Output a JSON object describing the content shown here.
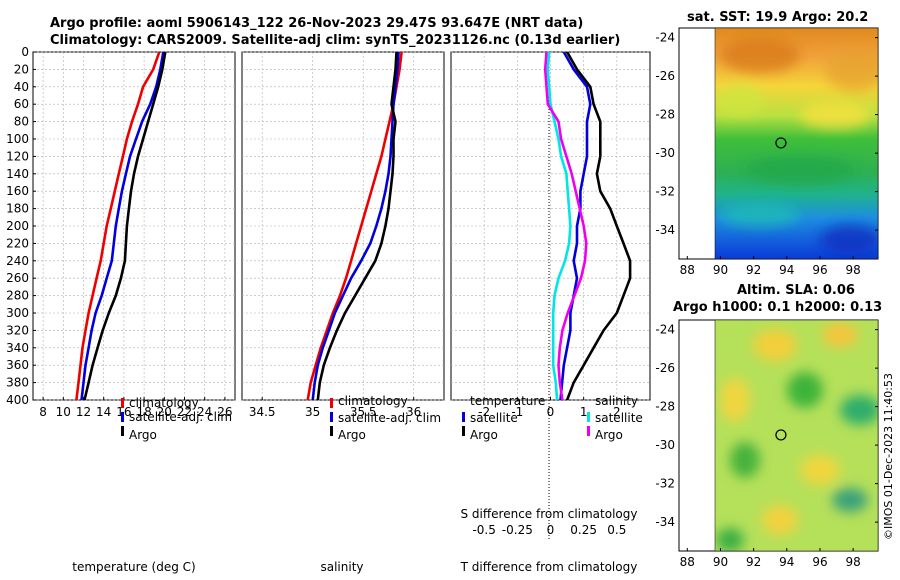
{
  "header": {
    "title_line1": "Argo profile: aoml 5906143_122 26-Nov-2023 29.47S 93.647E (NRT data)",
    "title_line2": "Climatology: CARS2009. Satellite-adj clim: synTS_20231126.nc (0.13d earlier)"
  },
  "colors": {
    "climatology": "#ee0000",
    "satellite": "#0000dd",
    "argo": "#000000",
    "cyan": "#00e5e5",
    "magenta": "#ee00ee"
  },
  "depth_axis": {
    "ylim": [
      0,
      400
    ],
    "ticks": [
      0,
      20,
      40,
      60,
      80,
      100,
      120,
      140,
      160,
      180,
      200,
      220,
      240,
      260,
      280,
      300,
      320,
      340,
      360,
      380,
      400
    ]
  },
  "chart_data": [
    {
      "type": "line",
      "panel": "temperature",
      "xlabel": "temperature (deg C)",
      "xlim": [
        7,
        27
      ],
      "xticks": [
        8,
        10,
        12,
        14,
        16,
        18,
        20,
        22,
        24,
        26
      ],
      "depth": [
        0,
        20,
        40,
        60,
        80,
        100,
        120,
        140,
        160,
        180,
        200,
        220,
        240,
        260,
        280,
        300,
        320,
        340,
        360,
        380,
        400
      ],
      "series": [
        {
          "name": "climatology",
          "color": "red",
          "values": [
            19.5,
            18.9,
            17.9,
            17.4,
            16.8,
            16.3,
            15.9,
            15.5,
            15.1,
            14.7,
            14.3,
            14.0,
            13.7,
            13.3,
            12.9,
            12.5,
            12.2,
            11.9,
            11.7,
            11.5,
            11.3
          ]
        },
        {
          "name": "satellite-adj. clim",
          "color": "blue",
          "values": [
            19.9,
            19.6,
            19.2,
            18.6,
            17.8,
            17.2,
            16.6,
            16.2,
            15.8,
            15.5,
            15.2,
            15.0,
            14.8,
            14.3,
            13.8,
            13.2,
            12.8,
            12.5,
            12.2,
            12.0,
            11.8
          ]
        },
        {
          "name": "Argo",
          "color": "black",
          "values": [
            20.1,
            19.8,
            19.4,
            18.9,
            18.4,
            17.9,
            17.4,
            17.0,
            16.7,
            16.5,
            16.3,
            16.2,
            16.1,
            15.7,
            15.2,
            14.5,
            13.9,
            13.4,
            12.9,
            12.5,
            12.1
          ]
        }
      ],
      "legend": [
        "climatology",
        "satellite-adj. clim",
        "Argo"
      ]
    },
    {
      "type": "line",
      "panel": "salinity",
      "xlabel": "salinity",
      "xlim": [
        34.3,
        36.3
      ],
      "xticks": [
        34.5,
        35,
        35.5,
        36
      ],
      "xtick_labels": [
        "34.5",
        "35",
        "35.5",
        "36"
      ],
      "depth": [
        0,
        20,
        40,
        60,
        80,
        100,
        120,
        140,
        160,
        180,
        200,
        220,
        240,
        260,
        280,
        300,
        320,
        340,
        360,
        380,
        400
      ],
      "series": [
        {
          "name": "climatology",
          "color": "red",
          "values": [
            35.88,
            35.86,
            35.83,
            35.8,
            35.76,
            35.72,
            35.68,
            35.63,
            35.58,
            35.53,
            35.48,
            35.43,
            35.38,
            35.33,
            35.27,
            35.2,
            35.14,
            35.08,
            35.03,
            34.98,
            34.95
          ]
        },
        {
          "name": "satellite-adj. clim",
          "color": "blue",
          "values": [
            35.85,
            35.84,
            35.82,
            35.8,
            35.79,
            35.78,
            35.77,
            35.75,
            35.72,
            35.68,
            35.63,
            35.57,
            35.48,
            35.38,
            35.3,
            35.22,
            35.16,
            35.1,
            35.05,
            35.02,
            35.0
          ]
        },
        {
          "name": "Argo",
          "color": "black",
          "values": [
            35.83,
            35.82,
            35.8,
            35.78,
            35.82,
            35.8,
            35.8,
            35.79,
            35.77,
            35.75,
            35.72,
            35.68,
            35.62,
            35.52,
            35.42,
            35.32,
            35.24,
            35.17,
            35.11,
            35.07,
            35.05
          ]
        }
      ],
      "legend": [
        "climatology",
        "satellite-adj. clim",
        "Argo"
      ]
    },
    {
      "type": "line",
      "panel": "difference",
      "xlabel": "T difference from climatology",
      "xlim": [
        -3,
        3
      ],
      "xticks": [
        -2,
        -1,
        0,
        1,
        2
      ],
      "xtick_labels": [
        "-2",
        "-1",
        "0",
        "1",
        "2"
      ],
      "secondary_label": "S difference from climatology",
      "secondary_xlim": [
        -0.75,
        0.75
      ],
      "secondary_ticks": [
        -0.5,
        -0.25,
        0,
        0.25,
        0.5
      ],
      "secondary_tick_labels": [
        "-0.5",
        "-0.25",
        "0",
        "0.25",
        "0.5"
      ],
      "depth": [
        0,
        20,
        40,
        60,
        80,
        100,
        120,
        140,
        160,
        180,
        200,
        220,
        240,
        260,
        280,
        300,
        320,
        340,
        360,
        380,
        400
      ],
      "series": [
        {
          "name": "temperature satellite",
          "color": "blue",
          "values": [
            0.4,
            0.7,
            1.1,
            1.2,
            1.1,
            1.1,
            1.1,
            1.0,
            0.9,
            0.9,
            0.8,
            0.8,
            0.7,
            0.8,
            0.7,
            0.6,
            0.6,
            0.5,
            0.4,
            0.35,
            0.3
          ]
        },
        {
          "name": "temperature Argo",
          "color": "black",
          "values": [
            0.5,
            0.8,
            1.2,
            1.3,
            1.5,
            1.5,
            1.5,
            1.4,
            1.5,
            1.8,
            2.0,
            2.2,
            2.4,
            2.4,
            2.2,
            2.0,
            1.6,
            1.3,
            1.0,
            0.7,
            0.5
          ]
        },
        {
          "name": "salinity satellite",
          "color": "cyan",
          "values": [
            -0.01,
            -0.02,
            -0.01,
            0.0,
            0.03,
            0.06,
            0.08,
            0.12,
            0.13,
            0.14,
            0.15,
            0.14,
            0.11,
            0.06,
            0.03,
            0.02,
            0.02,
            0.02,
            0.02,
            0.04,
            0.05
          ]
        },
        {
          "name": "salinity Argo",
          "color": "magenta",
          "values": [
            -0.03,
            -0.04,
            -0.03,
            -0.02,
            0.06,
            0.08,
            0.12,
            0.16,
            0.19,
            0.22,
            0.25,
            0.27,
            0.26,
            0.23,
            0.18,
            0.13,
            0.09,
            0.07,
            0.06,
            0.07,
            0.09
          ]
        }
      ],
      "legend_temperature": {
        "title": "temperature",
        "entries": [
          "satellite",
          "Argo"
        ]
      },
      "legend_salinity": {
        "title": "salinity",
        "entries": [
          "satellite",
          "Argo"
        ]
      }
    },
    {
      "type": "heatmap",
      "panel": "sst_map",
      "title": "sat. SST: 19.9 Argo: 20.2",
      "xlim": [
        87.5,
        99.5
      ],
      "ylim": [
        -35.5,
        -23.5
      ],
      "xticks": [
        88,
        90,
        92,
        94,
        96,
        98
      ],
      "yticks": [
        -34,
        -32,
        -30,
        -28,
        -26,
        -24
      ],
      "data_extent": {
        "lon": [
          90,
          99.5
        ],
        "lat": [
          -35.5,
          -23.5
        ]
      },
      "marker": {
        "lon": 93.647,
        "lat": -29.47
      }
    },
    {
      "type": "heatmap",
      "panel": "sla_map",
      "title_line1": "Altim. SLA: 0.06",
      "title_line2": "Argo h1000: 0.1 h2000: 0.13",
      "xlim": [
        87.5,
        99.5
      ],
      "ylim": [
        -35.5,
        -23.5
      ],
      "xticks": [
        88,
        90,
        92,
        94,
        96,
        98
      ],
      "yticks": [
        -34,
        -32,
        -30,
        -28,
        -26,
        -24
      ],
      "data_extent": {
        "lon": [
          90,
          99.5
        ],
        "lat": [
          -35.5,
          -23.5
        ]
      },
      "marker": {
        "lon": 93.647,
        "lat": -29.47
      }
    }
  ],
  "credit": "©IMOS 01-Dec-2023 11:40:53"
}
